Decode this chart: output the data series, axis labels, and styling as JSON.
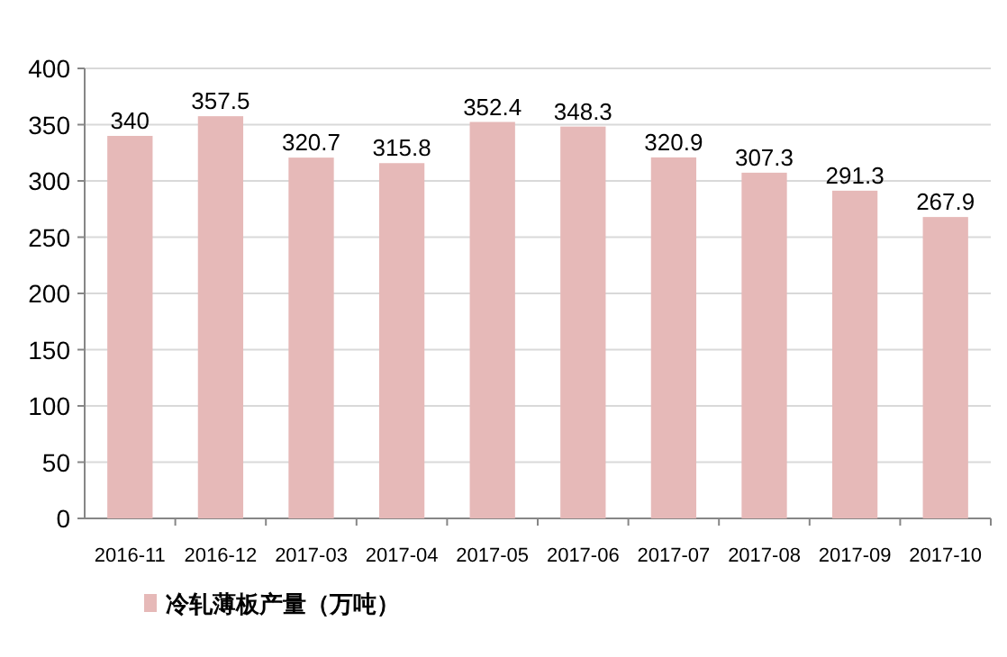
{
  "chart_data": {
    "type": "bar",
    "categories": [
      "2016-11",
      "2016-12",
      "2017-03",
      "2017-04",
      "2017-05",
      "2017-06",
      "2017-07",
      "2017-08",
      "2017-09",
      "2017-10"
    ],
    "series": [
      {
        "name": "冷轧薄板产量（万吨）",
        "color": "#e6b9b8",
        "values": [
          340,
          357.5,
          320.7,
          315.8,
          352.4,
          348.3,
          320.9,
          307.3,
          291.3,
          267.9
        ]
      }
    ],
    "ylim": [
      0,
      400
    ],
    "yticks": [
      0,
      50,
      100,
      150,
      200,
      250,
      300,
      350,
      400
    ],
    "grid": "y",
    "legend": "bottom left",
    "data_labels": true
  }
}
